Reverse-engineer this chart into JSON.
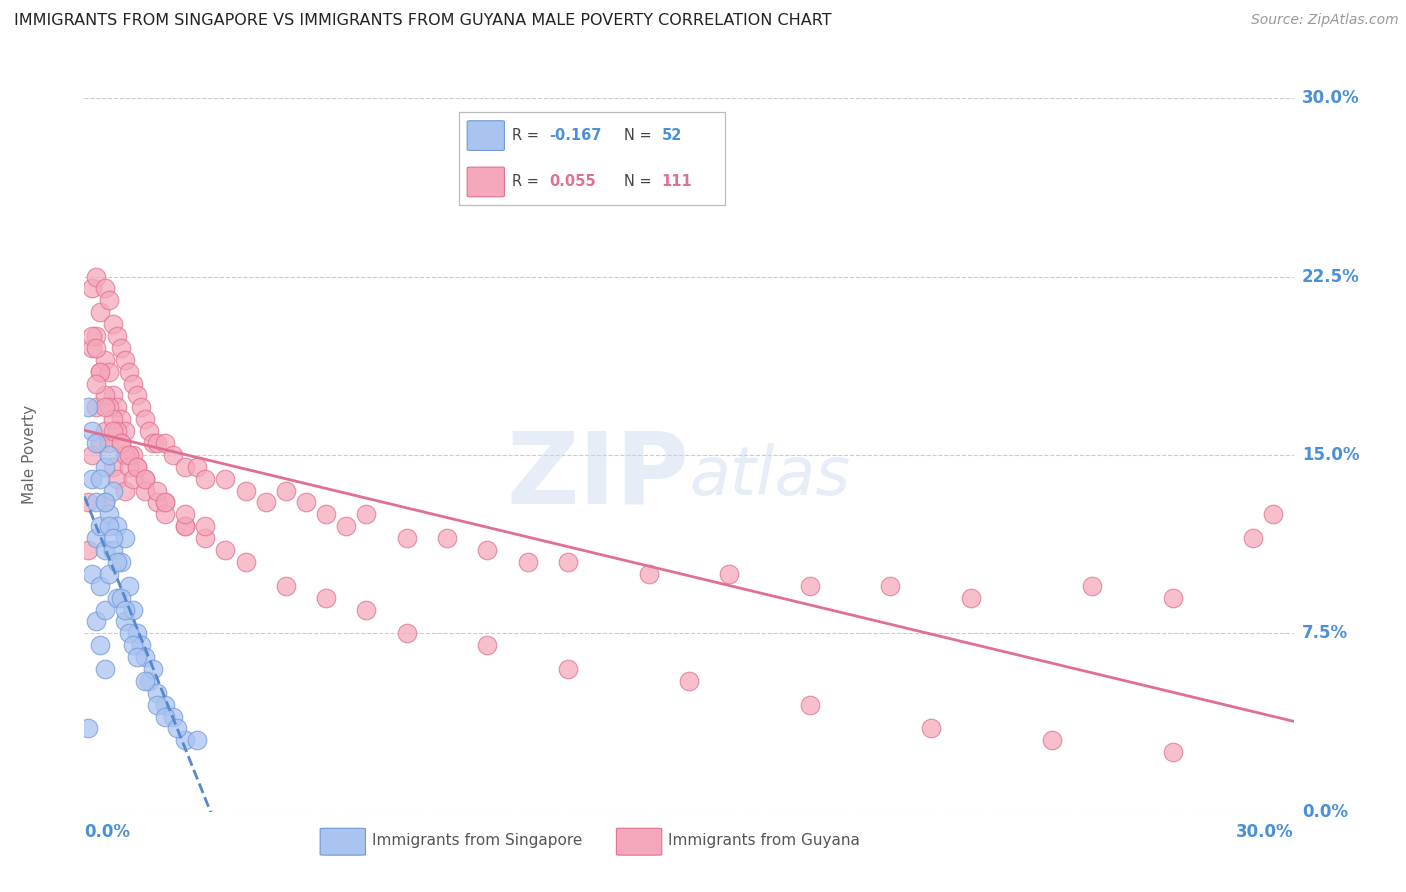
{
  "title": "IMMIGRANTS FROM SINGAPORE VS IMMIGRANTS FROM GUYANA MALE POVERTY CORRELATION CHART",
  "source": "Source: ZipAtlas.com",
  "ylabel": "Male Poverty",
  "ytick_labels": [
    "0.0%",
    "7.5%",
    "15.0%",
    "22.5%",
    "30.0%"
  ],
  "ytick_values": [
    0.0,
    7.5,
    15.0,
    22.5,
    30.0
  ],
  "xlim": [
    0.0,
    30.0
  ],
  "ylim": [
    0.0,
    30.0
  ],
  "singapore_color": "#aac4f0",
  "guyana_color": "#f5a8bc",
  "singapore_edge": "#7098d8",
  "guyana_edge": "#e07090",
  "singapore_line_color": "#5588cc",
  "guyana_line_color": "#e07090",
  "watermark": "ZIPatlas",
  "background_color": "#ffffff",
  "grid_color": "#cccccc",
  "title_color": "#222222",
  "axis_label_color": "#4a90d9",
  "right_label_color": "#4a90d9",
  "singapore_x": [
    0.1,
    0.2,
    0.2,
    0.3,
    0.3,
    0.3,
    0.4,
    0.4,
    0.4,
    0.5,
    0.5,
    0.5,
    0.5,
    0.6,
    0.6,
    0.6,
    0.7,
    0.7,
    0.8,
    0.8,
    0.9,
    1.0,
    1.0,
    1.1,
    1.2,
    1.3,
    1.4,
    1.5,
    1.6,
    1.7,
    1.8,
    2.0,
    2.2,
    2.5,
    0.1,
    0.2,
    0.3,
    0.4,
    0.5,
    0.6,
    0.7,
    0.8,
    0.9,
    1.0,
    1.1,
    1.2,
    1.3,
    1.5,
    1.8,
    2.0,
    2.3,
    2.8
  ],
  "singapore_y": [
    3.5,
    14.0,
    10.0,
    11.5,
    13.0,
    8.0,
    12.0,
    9.5,
    7.0,
    14.5,
    11.0,
    8.5,
    6.0,
    15.0,
    12.5,
    10.0,
    13.5,
    11.0,
    12.0,
    9.0,
    10.5,
    11.5,
    8.0,
    9.5,
    8.5,
    7.5,
    7.0,
    6.5,
    5.5,
    6.0,
    5.0,
    4.5,
    4.0,
    3.0,
    17.0,
    16.0,
    15.5,
    14.0,
    13.0,
    12.0,
    11.5,
    10.5,
    9.0,
    8.5,
    7.5,
    7.0,
    6.5,
    5.5,
    4.5,
    4.0,
    3.5,
    3.0
  ],
  "guyana_x": [
    0.1,
    0.1,
    0.2,
    0.2,
    0.2,
    0.3,
    0.3,
    0.3,
    0.4,
    0.4,
    0.4,
    0.5,
    0.5,
    0.5,
    0.5,
    0.6,
    0.6,
    0.6,
    0.7,
    0.7,
    0.7,
    0.8,
    0.8,
    0.8,
    0.9,
    0.9,
    1.0,
    1.0,
    1.0,
    1.1,
    1.1,
    1.2,
    1.2,
    1.3,
    1.3,
    1.4,
    1.5,
    1.5,
    1.6,
    1.7,
    1.8,
    2.0,
    2.0,
    2.2,
    2.5,
    2.5,
    2.8,
    3.0,
    3.5,
    4.0,
    4.5,
    5.0,
    5.5,
    6.0,
    6.5,
    7.0,
    8.0,
    9.0,
    10.0,
    11.0,
    12.0,
    14.0,
    16.0,
    18.0,
    20.0,
    22.0,
    25.0,
    27.0,
    29.0,
    0.2,
    0.3,
    0.4,
    0.5,
    0.6,
    0.7,
    0.8,
    0.9,
    1.0,
    1.1,
    1.2,
    1.5,
    1.8,
    2.0,
    2.5,
    3.0,
    3.5,
    4.0,
    5.0,
    6.0,
    7.0,
    8.0,
    10.0,
    12.0,
    15.0,
    18.0,
    21.0,
    24.0,
    27.0,
    29.5,
    0.3,
    0.5,
    0.7,
    0.9,
    1.1,
    1.3,
    1.5,
    1.8,
    2.0,
    2.5,
    3.0
  ],
  "guyana_y": [
    13.0,
    11.0,
    22.0,
    19.5,
    15.0,
    22.5,
    20.0,
    17.0,
    21.0,
    18.5,
    15.5,
    22.0,
    19.0,
    16.0,
    13.0,
    21.5,
    18.5,
    15.5,
    20.5,
    17.5,
    14.5,
    20.0,
    17.0,
    14.0,
    19.5,
    16.5,
    19.0,
    16.0,
    13.5,
    18.5,
    15.0,
    18.0,
    15.0,
    17.5,
    14.5,
    17.0,
    16.5,
    14.0,
    16.0,
    15.5,
    15.5,
    15.5,
    13.0,
    15.0,
    14.5,
    12.0,
    14.5,
    14.0,
    14.0,
    13.5,
    13.0,
    13.5,
    13.0,
    12.5,
    12.0,
    12.5,
    11.5,
    11.5,
    11.0,
    10.5,
    10.5,
    10.0,
    10.0,
    9.5,
    9.5,
    9.0,
    9.5,
    9.0,
    11.5,
    20.0,
    19.5,
    18.5,
    17.5,
    17.0,
    16.5,
    16.0,
    15.5,
    15.0,
    14.5,
    14.0,
    13.5,
    13.0,
    12.5,
    12.0,
    11.5,
    11.0,
    10.5,
    9.5,
    9.0,
    8.5,
    7.5,
    7.0,
    6.0,
    5.5,
    4.5,
    3.5,
    3.0,
    2.5,
    12.5,
    18.0,
    17.0,
    16.0,
    15.5,
    15.0,
    14.5,
    14.0,
    13.5,
    13.0,
    12.5,
    12.0
  ]
}
